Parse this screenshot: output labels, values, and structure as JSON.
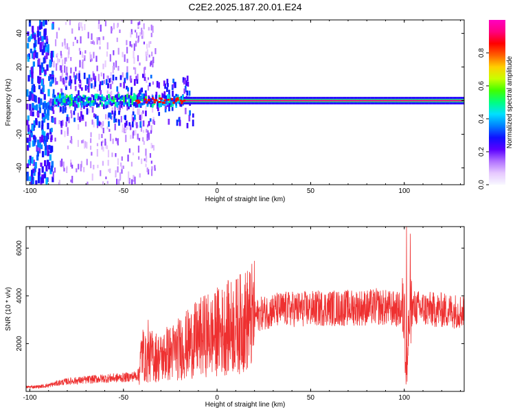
{
  "title": "C2E2.2025.187.20.01.E24",
  "colors": {
    "line": "#ee3030",
    "frame": "#000000",
    "colormap": [
      "#f8f8ff",
      "#e6c8ff",
      "#b070ff",
      "#5a00ff",
      "#1010ff",
      "#0080ff",
      "#00e0ff",
      "#00ff80",
      "#40ff00",
      "#c8ff00",
      "#ffd000",
      "#ff6000",
      "#ff0000",
      "#ff0080",
      "#ff00c0"
    ]
  },
  "chart_data": [
    {
      "type": "heatmap",
      "title": "C2E2.2025.187.20.01.E24",
      "xlabel": "Height of straight line (km)",
      "ylabel": "Frequency (Hz)",
      "xlim": [
        -102,
        132
      ],
      "ylim": [
        -50,
        48
      ],
      "xticks": [
        "-100",
        "-50",
        "0",
        "50",
        "100"
      ],
      "yticks": [
        "-40",
        "-20",
        "0",
        "20",
        "40"
      ],
      "colorbar": {
        "label": "Normalized spectral amplitude",
        "range": [
          0.0,
          1.0
        ],
        "ticks": [
          "0.0",
          "0.2",
          "0.4",
          "0.6",
          "0.8"
        ]
      },
      "features": [
        {
          "x_range": [
            -102,
            -88
          ],
          "description": "broadband purple noise spanning all frequencies"
        },
        {
          "x_range": [
            -88,
            -18
          ],
          "freq_hz": 0,
          "amplitude": 0.3,
          "note": "blue/cyan band around 0 Hz with scattered speckle"
        },
        {
          "x_range": [
            -18,
            132
          ],
          "freq_hz": 0,
          "amplitude": 0.9,
          "note": "narrow red line at 0 Hz"
        }
      ]
    },
    {
      "type": "line",
      "xlabel": "Height of straight line (km)",
      "ylabel": "SNR (10 * v/v)",
      "xlim": [
        -102,
        132
      ],
      "ylim": [
        0,
        6900
      ],
      "xticks": [
        "-100",
        "-50",
        "0",
        "50",
        "100"
      ],
      "yticks": [
        "2000",
        "4000",
        "6000"
      ],
      "x": [
        -102,
        -95,
        -90,
        -85,
        -80,
        -75,
        -70,
        -65,
        -60,
        -55,
        -50,
        -45,
        -42,
        -40,
        -38,
        -35,
        -30,
        -25,
        -20,
        -15,
        -10,
        -5,
        -2,
        0,
        2,
        5,
        10,
        15,
        20,
        25,
        30,
        35,
        40,
        45,
        50,
        55,
        60,
        65,
        70,
        75,
        80,
        85,
        90,
        95,
        98,
        100,
        101,
        102,
        103,
        105,
        110,
        115,
        120,
        125,
        132
      ],
      "y": [
        180,
        200,
        250,
        350,
        420,
        450,
        480,
        520,
        540,
        560,
        580,
        620,
        700,
        1700,
        1300,
        1500,
        1400,
        1600,
        1800,
        2000,
        2200,
        2400,
        2300,
        2500,
        2500,
        2650,
        2750,
        2950,
        3150,
        3300,
        3400,
        3430,
        3450,
        3450,
        3450,
        3480,
        3500,
        3480,
        3500,
        3520,
        3500,
        3550,
        3500,
        3450,
        3400,
        3350,
        800,
        1800,
        3400,
        3500,
        3450,
        3420,
        3400,
        3380,
        3350
      ],
      "spikes": [
        {
          "x": 0,
          "y": 4350
        },
        {
          "x": 101,
          "y": 6900
        },
        {
          "x": 103,
          "y": 6600
        },
        {
          "x": -37,
          "y": 3000
        },
        {
          "x": -27,
          "y": 2700
        }
      ]
    }
  ]
}
